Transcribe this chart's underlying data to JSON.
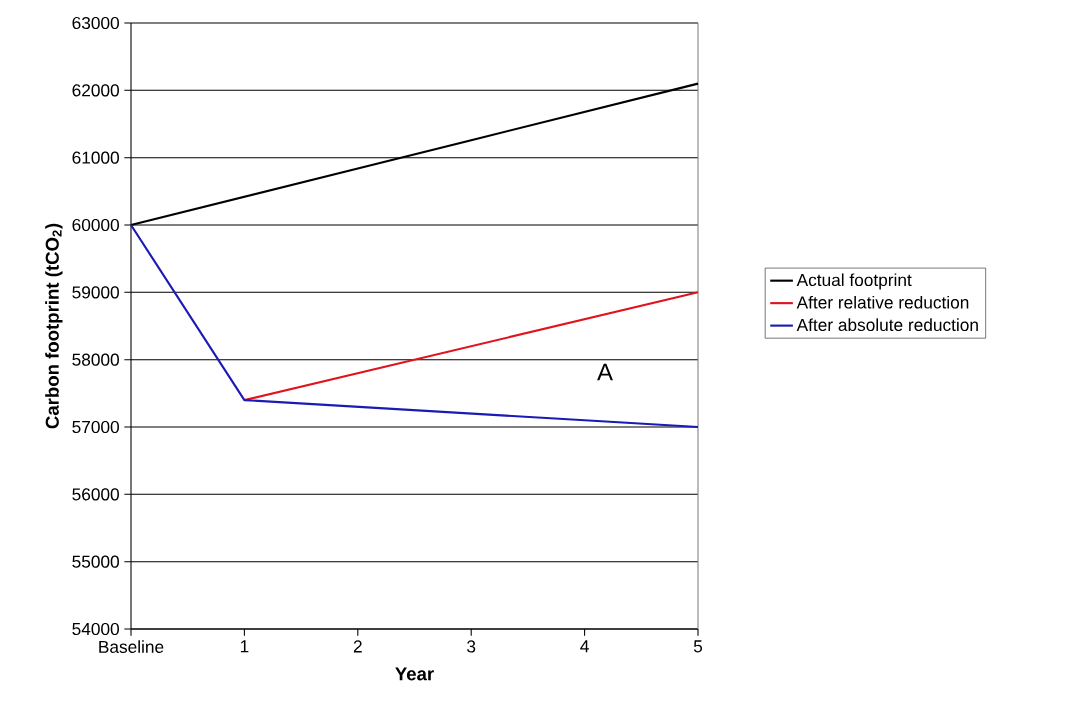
{
  "chart_data": {
    "type": "line",
    "xlabel": "Year",
    "ylabel": "Carbon footprint (tCO$_{2}$)",
    "categories": [
      "Baseline",
      "1",
      "2",
      "3",
      "4",
      "5"
    ],
    "series": [
      {
        "name": "Actual footprint",
        "color": "#000000",
        "values": [
          60000,
          60420,
          60840,
          61260,
          61680,
          62100
        ]
      },
      {
        "name": "After relative reduction",
        "color": "#e0141e",
        "values": [
          null,
          57400,
          57800,
          58200,
          58600,
          59000
        ]
      },
      {
        "name": "After absolute reduction",
        "color": "#1a1ab4",
        "values": [
          60000,
          57400,
          57300,
          57200,
          57100,
          57000
        ]
      }
    ],
    "ylim": [
      54000,
      63000
    ],
    "yticks": [
      54000,
      55000,
      56000,
      57000,
      58000,
      59000,
      60000,
      61000,
      62000,
      63000
    ],
    "grid": "y",
    "legend": "right",
    "marker": "none",
    "line_style": "solid",
    "annotations": [
      "A"
    ]
  }
}
